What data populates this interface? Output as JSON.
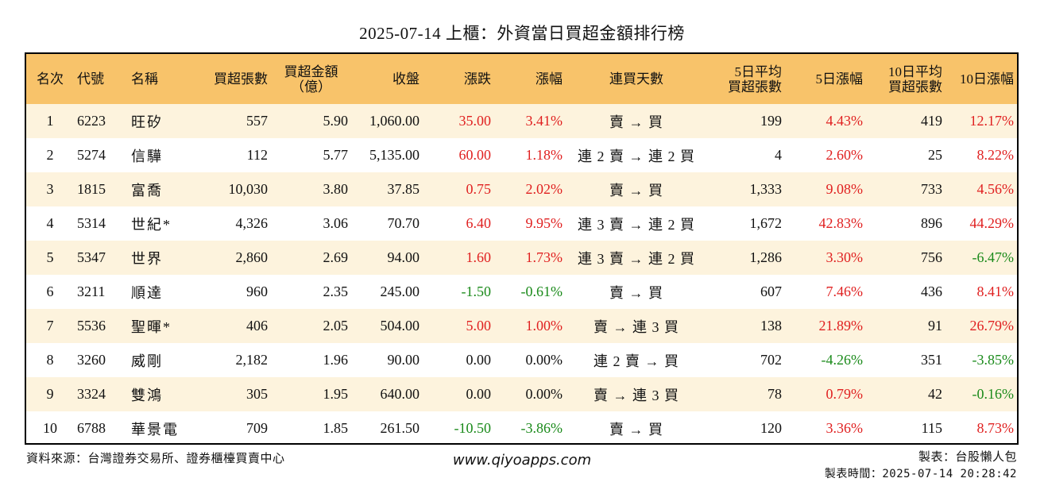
{
  "title": "2025-07-14 上櫃：外資當日買超金額排行榜",
  "colors": {
    "header_bg": "#f8c36a",
    "odd_row_bg": "#fdf3dd",
    "up": "#e02020",
    "down": "#1a8a1a"
  },
  "headers": {
    "rank": "名次",
    "code": "代號",
    "name": "名稱",
    "buy_lots": "買超張數",
    "buy_amount_1": "買超金額",
    "buy_amount_2": "（億）",
    "close": "收盤",
    "change": "漲跌",
    "pct": "漲幅",
    "days": "連買天數",
    "avg5_1": "5日平均",
    "avg5_2": "買超張數",
    "pct5": "5日漲幅",
    "avg10_1": "10日平均",
    "avg10_2": "買超張數",
    "pct10": "10日漲幅"
  },
  "rows": [
    {
      "rank": "1",
      "code": "6223",
      "name": "旺矽",
      "buy_lots": "557",
      "buy_amount": "5.90",
      "close": "1,060.00",
      "change": "35.00",
      "change_dir": "up",
      "pct": "3.41%",
      "pct_dir": "up",
      "days": "賣 → 買",
      "avg5": "199",
      "pct5": "4.43%",
      "pct5_dir": "up",
      "avg10": "419",
      "pct10": "12.17%",
      "pct10_dir": "up"
    },
    {
      "rank": "2",
      "code": "5274",
      "name": "信驊",
      "buy_lots": "112",
      "buy_amount": "5.77",
      "close": "5,135.00",
      "change": "60.00",
      "change_dir": "up",
      "pct": "1.18%",
      "pct_dir": "up",
      "days": "連 2 賣 → 連 2 買",
      "avg5": "4",
      "pct5": "2.60%",
      "pct5_dir": "up",
      "avg10": "25",
      "pct10": "8.22%",
      "pct10_dir": "up"
    },
    {
      "rank": "3",
      "code": "1815",
      "name": "富喬",
      "buy_lots": "10,030",
      "buy_amount": "3.80",
      "close": "37.85",
      "change": "0.75",
      "change_dir": "up",
      "pct": "2.02%",
      "pct_dir": "up",
      "days": "賣 → 買",
      "avg5": "1,333",
      "pct5": "9.08%",
      "pct5_dir": "up",
      "avg10": "733",
      "pct10": "4.56%",
      "pct10_dir": "up"
    },
    {
      "rank": "4",
      "code": "5314",
      "name": "世紀*",
      "buy_lots": "4,326",
      "buy_amount": "3.06",
      "close": "70.70",
      "change": "6.40",
      "change_dir": "up",
      "pct": "9.95%",
      "pct_dir": "up",
      "days": "連 3 賣 → 連 2 買",
      "avg5": "1,672",
      "pct5": "42.83%",
      "pct5_dir": "up",
      "avg10": "896",
      "pct10": "44.29%",
      "pct10_dir": "up"
    },
    {
      "rank": "5",
      "code": "5347",
      "name": "世界",
      "buy_lots": "2,860",
      "buy_amount": "2.69",
      "close": "94.00",
      "change": "1.60",
      "change_dir": "up",
      "pct": "1.73%",
      "pct_dir": "up",
      "days": "連 3 賣 → 連 2 買",
      "avg5": "1,286",
      "pct5": "3.30%",
      "pct5_dir": "up",
      "avg10": "756",
      "pct10": "-6.47%",
      "pct10_dir": "down"
    },
    {
      "rank": "6",
      "code": "3211",
      "name": "順達",
      "buy_lots": "960",
      "buy_amount": "2.35",
      "close": "245.00",
      "change": "-1.50",
      "change_dir": "down",
      "pct": "-0.61%",
      "pct_dir": "down",
      "days": "賣 → 買",
      "avg5": "607",
      "pct5": "7.46%",
      "pct5_dir": "up",
      "avg10": "436",
      "pct10": "8.41%",
      "pct10_dir": "up"
    },
    {
      "rank": "7",
      "code": "5536",
      "name": "聖暉*",
      "buy_lots": "406",
      "buy_amount": "2.05",
      "close": "504.00",
      "change": "5.00",
      "change_dir": "up",
      "pct": "1.00%",
      "pct_dir": "up",
      "days": "賣 → 連 3 買",
      "avg5": "138",
      "pct5": "21.89%",
      "pct5_dir": "up",
      "avg10": "91",
      "pct10": "26.79%",
      "pct10_dir": "up"
    },
    {
      "rank": "8",
      "code": "3260",
      "name": "威剛",
      "buy_lots": "2,182",
      "buy_amount": "1.96",
      "close": "90.00",
      "change": "0.00",
      "change_dir": "flat",
      "pct": "0.00%",
      "pct_dir": "flat",
      "days": "連 2 賣 → 買",
      "avg5": "702",
      "pct5": "-4.26%",
      "pct5_dir": "down",
      "avg10": "351",
      "pct10": "-3.85%",
      "pct10_dir": "down"
    },
    {
      "rank": "9",
      "code": "3324",
      "name": "雙鴻",
      "buy_lots": "305",
      "buy_amount": "1.95",
      "close": "640.00",
      "change": "0.00",
      "change_dir": "flat",
      "pct": "0.00%",
      "pct_dir": "flat",
      "days": "賣 → 連 3 買",
      "avg5": "78",
      "pct5": "0.79%",
      "pct5_dir": "up",
      "avg10": "42",
      "pct10": "-0.16%",
      "pct10_dir": "down"
    },
    {
      "rank": "10",
      "code": "6788",
      "name": "華景電",
      "buy_lots": "709",
      "buy_amount": "1.85",
      "close": "261.50",
      "change": "-10.50",
      "change_dir": "down",
      "pct": "-3.86%",
      "pct_dir": "down",
      "days": "賣 → 買",
      "avg5": "120",
      "pct5": "3.36%",
      "pct5_dir": "up",
      "avg10": "115",
      "pct10": "8.73%",
      "pct10_dir": "up"
    }
  ],
  "footer": {
    "source": "資料來源：台灣證券交易所、證券櫃檯買賣中心",
    "website": "www.qiyoapps.com",
    "author": "製表：台股懶人包",
    "time": "製表時間：2025-07-14 20:28:42"
  }
}
